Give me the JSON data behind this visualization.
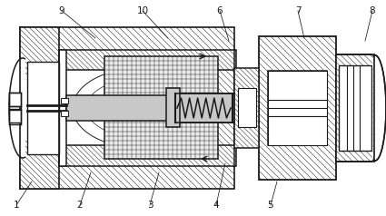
{
  "bg_color": "#ffffff",
  "lc": "#1a1a1a",
  "gray": "#c8c8c8",
  "lgray": "#e0e0e0",
  "label_data": [
    [
      "1",
      18,
      226,
      35,
      200
    ],
    [
      "2",
      88,
      226,
      100,
      190
    ],
    [
      "3",
      165,
      226,
      175,
      190
    ],
    [
      "4",
      238,
      226,
      248,
      180
    ],
    [
      "5",
      298,
      226,
      305,
      200
    ],
    [
      "6",
      242,
      12,
      252,
      45
    ],
    [
      "7",
      328,
      12,
      335,
      42
    ],
    [
      "8",
      410,
      12,
      402,
      45
    ],
    [
      "9",
      68,
      12,
      105,
      42
    ],
    [
      "10",
      157,
      12,
      185,
      42
    ]
  ]
}
